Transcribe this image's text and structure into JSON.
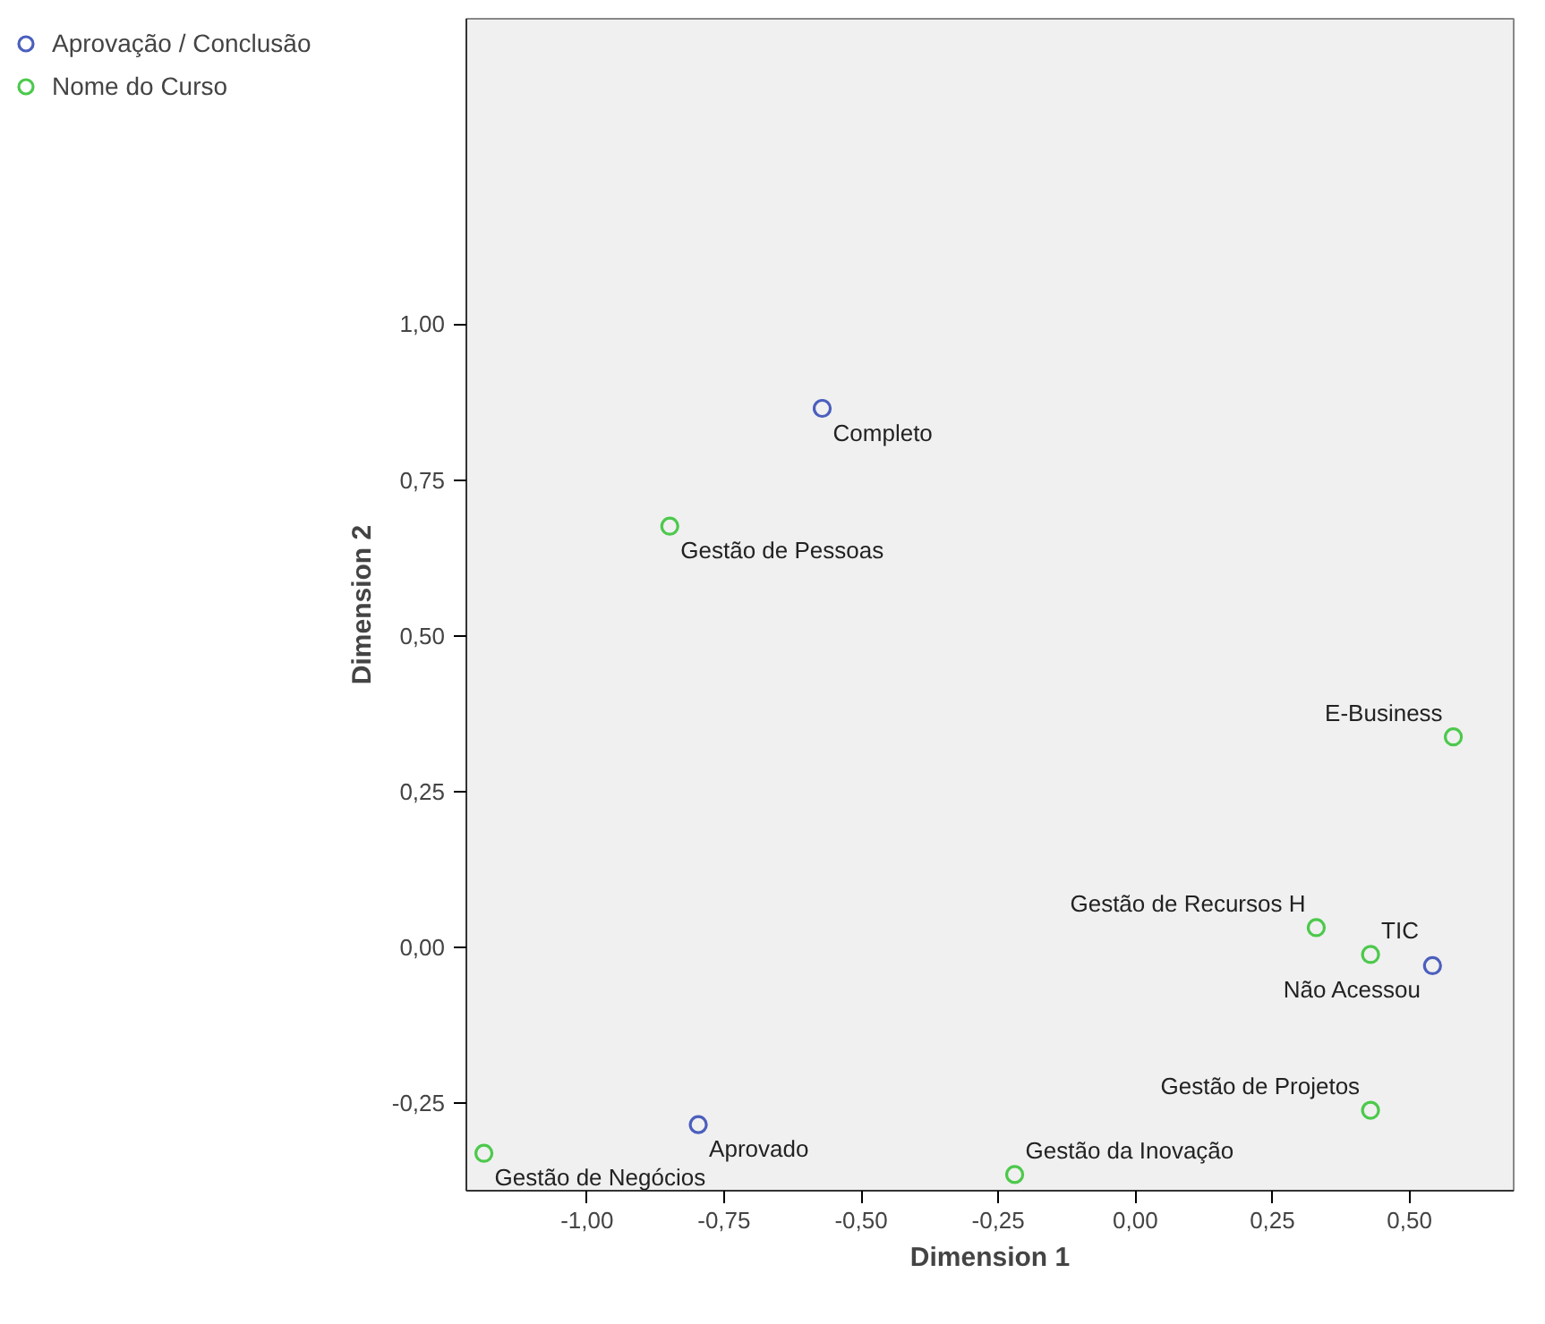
{
  "chart_data": {
    "type": "scatter",
    "xlabel": "Dimension 1",
    "ylabel": "Dimension 2",
    "legend": "top left",
    "marker": "circle",
    "grid": false,
    "xlim": [
      -1.22,
      0.69
    ],
    "ylim": [
      -0.39,
      1.49
    ],
    "xticks": [
      {
        "value": -1,
        "label": "-1,00"
      },
      {
        "value": -0.75,
        "label": "-0,75"
      },
      {
        "value": -0.5,
        "label": "-0,50"
      },
      {
        "value": -0.25,
        "label": "-0,25"
      },
      {
        "value": 0,
        "label": "0,00"
      },
      {
        "value": 0.25,
        "label": "0,25"
      },
      {
        "value": 0.5,
        "label": "0,50"
      }
    ],
    "yticks": [
      {
        "value": -0.25,
        "label": "-0,25"
      },
      {
        "value": 0,
        "label": "0,00"
      },
      {
        "value": 0.25,
        "label": "0,25"
      },
      {
        "value": 0.5,
        "label": "0,50"
      },
      {
        "value": 0.75,
        "label": "0,75"
      },
      {
        "value": 1,
        "label": "1,00"
      }
    ],
    "series": [
      {
        "name": "Aprovação / Conclusão",
        "color": "#4b5fbd",
        "x": [
          -0.571,
          0.542,
          -0.797
        ],
        "values": [
          0.865,
          -0.029,
          -0.284
        ]
      },
      {
        "name": "Nome do Curso",
        "color": "#4cc94c",
        "x": [
          -0.849,
          0.58,
          0.33,
          0.429,
          0.429,
          -1.188,
          -0.22
        ],
        "values": [
          0.676,
          0.338,
          0.032,
          -0.011,
          -0.261,
          -0.33,
          -0.364
        ]
      }
    ],
    "annotations": [
      {
        "text": "Completo",
        "x": -0.571,
        "y": 0.865
      },
      {
        "text": "Não Acessou",
        "x": 0.542,
        "y": -0.029
      },
      {
        "text": "Aprovado",
        "x": -0.797,
        "y": -0.284
      },
      {
        "text": "Gestão de Pessoas",
        "x": -0.849,
        "y": 0.676
      },
      {
        "text": "E-Business",
        "x": 0.58,
        "y": 0.338
      },
      {
        "text": "Gestão de Recursos H",
        "x": 0.33,
        "y": 0.032
      },
      {
        "text": "TIC",
        "x": 0.429,
        "y": -0.011
      },
      {
        "text": "Gestão de Projetos",
        "x": 0.429,
        "y": -0.261
      },
      {
        "text": "Gestão de Negócios",
        "x": -1.188,
        "y": -0.33
      },
      {
        "text": "Gestão da Inovação",
        "x": -0.22,
        "y": -0.364
      }
    ]
  }
}
